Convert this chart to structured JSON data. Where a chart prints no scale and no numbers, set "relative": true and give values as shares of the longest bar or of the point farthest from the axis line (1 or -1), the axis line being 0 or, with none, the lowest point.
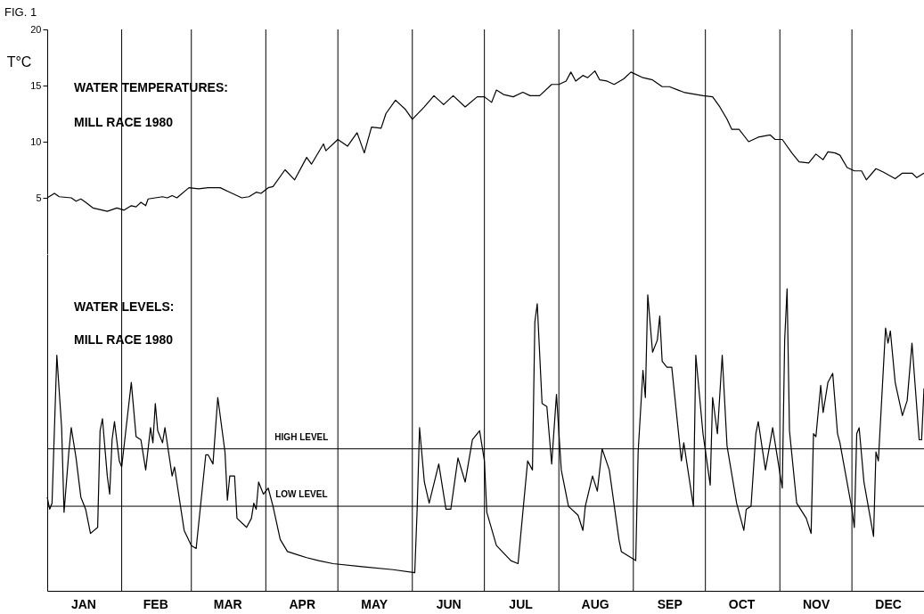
{
  "chart_data": [
    {
      "type": "line",
      "title": "FIG. 1",
      "ylabel": "T°C",
      "annotations": [
        "WATER TEMPERATURES:",
        "MILL RACE 1980"
      ],
      "x": [
        "1980-01-01",
        "1980-01-04",
        "1980-01-06",
        "1980-01-11",
        "1980-01-13",
        "1980-01-15",
        "1980-01-17",
        "1980-01-20",
        "1980-01-26",
        "1980-01-30",
        "1980-02-02",
        "1980-02-05",
        "1980-02-07",
        "1980-02-09",
        "1980-02-11",
        "1980-02-12",
        "1980-02-18",
        "1980-02-20",
        "1980-02-22",
        "1980-02-24",
        "1980-02-29",
        "1980-03-04",
        "1980-03-08",
        "1980-03-13",
        "1980-03-17",
        "1980-03-22",
        "1980-03-25",
        "1980-03-28",
        "1980-03-30",
        "1980-04-02",
        "1980-04-04",
        "1980-04-09",
        "1980-04-13",
        "1980-04-18",
        "1980-04-20",
        "1980-04-25",
        "1980-04-26",
        "1980-05-01",
        "1980-05-05",
        "1980-05-09",
        "1980-05-12",
        "1980-05-15",
        "1980-05-19",
        "1980-05-21",
        "1980-05-25",
        "1980-05-29",
        "1980-06-01",
        "1980-06-06",
        "1980-06-10",
        "1980-06-14",
        "1980-06-18",
        "1980-06-23",
        "1980-06-28",
        "1980-07-01",
        "1980-07-04",
        "1980-07-06",
        "1980-07-09",
        "1980-07-13",
        "1980-07-17",
        "1980-07-20",
        "1980-07-24",
        "1980-07-29",
        "1980-08-01",
        "1980-08-04",
        "1980-08-06",
        "1980-08-08",
        "1980-08-11",
        "1980-08-13",
        "1980-08-16",
        "1980-08-18",
        "1980-08-21",
        "1980-08-24",
        "1980-08-28",
        "1980-08-31",
        "1980-09-05",
        "1980-09-09",
        "1980-09-13",
        "1980-09-16",
        "1980-09-22",
        "1980-09-30",
        "1980-10-04",
        "1980-10-07",
        "1980-10-10",
        "1980-10-12",
        "1980-10-15",
        "1980-10-19",
        "1980-10-23",
        "1980-10-28",
        "1980-10-30",
        "1980-11-02",
        "1980-11-06",
        "1980-11-09",
        "1980-11-13",
        "1980-11-16",
        "1980-11-19",
        "1980-11-21",
        "1980-11-24",
        "1980-11-26",
        "1980-11-29",
        "1980-12-02",
        "1980-12-05",
        "1980-12-07",
        "1980-12-11",
        "1980-12-14",
        "1980-12-19",
        "1980-12-22",
        "1980-12-26",
        "1980-12-28",
        "1980-12-31"
      ],
      "series": [
        {
          "color": "#000000",
          "values": [
            5.0,
            5.4,
            5.1,
            5.0,
            4.7,
            4.9,
            4.6,
            4.1,
            3.8,
            4.1,
            3.9,
            4.3,
            4.2,
            4.6,
            4.3,
            4.9,
            5.1,
            5.0,
            5.2,
            5.0,
            5.9,
            5.8,
            5.9,
            5.9,
            5.5,
            5.0,
            5.1,
            5.5,
            5.4,
            5.9,
            6.0,
            7.5,
            6.6,
            8.6,
            8.0,
            9.8,
            9.2,
            10.2,
            9.6,
            10.8,
            9.0,
            11.3,
            11.2,
            12.5,
            13.7,
            12.9,
            12.0,
            13.1,
            14.1,
            13.3,
            14.1,
            13.1,
            14.0,
            14.0,
            13.5,
            14.6,
            14.2,
            14.0,
            14.4,
            14.1,
            14.1,
            15.1,
            15.1,
            15.4,
            16.2,
            15.4,
            15.9,
            15.7,
            16.3,
            15.5,
            15.4,
            15.1,
            15.6,
            16.2,
            15.7,
            15.5,
            14.9,
            14.9,
            14.4,
            14.1,
            14.0,
            13.1,
            12.0,
            11.1,
            11.1,
            10.0,
            10.4,
            10.6,
            10.2,
            10.2,
            9.0,
            8.2,
            8.1,
            8.9,
            8.4,
            9.1,
            9.0,
            8.8,
            7.7,
            7.4,
            7.4,
            6.6,
            7.6,
            7.3,
            6.7,
            7.2,
            7.2,
            6.8,
            7.2
          ]
        }
      ],
      "xlim": [
        "1980-01-01",
        "1980-12-31"
      ],
      "ylim": [
        0,
        20
      ],
      "yticks": [
        5,
        10,
        15,
        20
      ],
      "tick_labels": "y",
      "ref_lines": [
        {
          "axis": "x",
          "value": "1980-02-01"
        },
        {
          "axis": "x",
          "value": "1980-03-01"
        },
        {
          "axis": "x",
          "value": "1980-04-01"
        },
        {
          "axis": "x",
          "value": "1980-05-01"
        },
        {
          "axis": "x",
          "value": "1980-06-01"
        },
        {
          "axis": "x",
          "value": "1980-07-01"
        },
        {
          "axis": "x",
          "value": "1980-08-01"
        },
        {
          "axis": "x",
          "value": "1980-09-01"
        },
        {
          "axis": "x",
          "value": "1980-10-01"
        },
        {
          "axis": "x",
          "value": "1980-11-01"
        },
        {
          "axis": "x",
          "value": "1980-12-01"
        }
      ]
    },
    {
      "type": "line",
      "relative": true,
      "annotations": [
        "WATER LEVELS:",
        "MILL RACE 1980"
      ],
      "x": [
        "1980-01-01",
        "1980-01-02",
        "1980-01-03",
        "1980-01-05",
        "1980-01-07",
        "1980-01-08",
        "1980-01-10",
        "1980-01-11",
        "1980-01-13",
        "1980-01-15",
        "1980-01-17",
        "1980-01-19",
        "1980-01-22",
        "1980-01-23",
        "1980-01-24",
        "1980-01-26",
        "1980-01-27",
        "1980-01-28",
        "1980-01-29",
        "1980-01-31",
        "1980-02-01",
        "1980-02-03",
        "1980-02-05",
        "1980-02-07",
        "1980-02-09",
        "1980-02-11",
        "1980-02-13",
        "1980-02-14",
        "1980-02-15",
        "1980-02-16",
        "1980-02-18",
        "1980-02-19",
        "1980-02-22",
        "1980-02-23",
        "1980-02-27",
        "1980-03-01",
        "1980-03-03",
        "1980-03-07",
        "1980-03-08",
        "1980-03-10",
        "1980-03-12",
        "1980-03-15",
        "1980-03-16",
        "1980-03-17",
        "1980-03-19",
        "1980-03-20",
        "1980-03-24",
        "1980-03-26",
        "1980-03-27",
        "1980-03-28",
        "1980-03-29",
        "1980-03-31",
        "1980-04-02",
        "1980-04-04",
        "1980-04-07",
        "1980-04-10",
        "1980-04-14",
        "1980-04-18",
        "1980-04-23",
        "1980-04-29",
        "1980-05-11",
        "1980-05-24",
        "1980-06-02",
        "1980-06-03",
        "1980-06-04",
        "1980-06-06",
        "1980-06-08",
        "1980-06-12",
        "1980-06-15",
        "1980-06-17",
        "1980-06-20",
        "1980-06-23",
        "1980-06-26",
        "1980-06-29",
        "1980-07-01",
        "1980-07-02",
        "1980-07-06",
        "1980-07-12",
        "1980-07-15",
        "1980-07-17",
        "1980-07-19",
        "1980-07-21",
        "1980-07-22",
        "1980-07-23",
        "1980-07-25",
        "1980-07-27",
        "1980-07-29",
        "1980-07-31",
        "1980-08-02",
        "1980-08-05",
        "1980-08-09",
        "1980-08-11",
        "1980-08-12",
        "1980-08-15",
        "1980-08-17",
        "1980-08-19",
        "1980-08-22",
        "1980-08-26",
        "1980-08-27",
        "1980-09-02",
        "1980-09-03",
        "1980-09-05",
        "1980-09-06",
        "1980-09-07",
        "1980-09-09",
        "1980-09-11",
        "1980-09-12",
        "1980-09-13",
        "1980-09-15",
        "1980-09-17",
        "1980-09-21",
        "1980-09-22",
        "1980-09-26",
        "1980-09-27",
        "1980-09-30",
        "1980-10-03",
        "1980-10-04",
        "1980-10-06",
        "1980-10-08",
        "1980-10-10",
        "1980-10-14",
        "1980-10-17",
        "1980-10-18",
        "1980-10-20",
        "1980-10-22",
        "1980-10-23",
        "1980-10-26",
        "1980-10-29",
        "1980-11-02",
        "1980-11-03",
        "1980-11-04",
        "1980-11-05",
        "1980-11-08",
        "1980-11-12",
        "1980-11-14",
        "1980-11-15",
        "1980-11-16",
        "1980-11-18",
        "1980-11-19",
        "1980-11-21",
        "1980-11-23",
        "1980-11-25",
        "1980-11-26",
        "1980-12-01",
        "1980-12-02",
        "1980-12-03",
        "1980-12-04",
        "1980-12-06",
        "1980-12-10",
        "1980-12-11",
        "1980-12-12",
        "1980-12-15",
        "1980-12-16",
        "1980-12-17",
        "1980-12-19",
        "1980-12-22",
        "1980-12-24",
        "1980-12-26",
        "1980-12-29",
        "1980-12-30",
        "1980-12-31"
      ],
      "series": [
        {
          "color": "#000000",
          "values": [
            0.31,
            0.27,
            0.29,
            0.78,
            0.54,
            0.26,
            0.46,
            0.54,
            0.44,
            0.31,
            0.27,
            0.19,
            0.21,
            0.53,
            0.57,
            0.38,
            0.32,
            0.5,
            0.56,
            0.43,
            0.41,
            0.55,
            0.69,
            0.51,
            0.5,
            0.4,
            0.54,
            0.49,
            0.62,
            0.53,
            0.49,
            0.54,
            0.38,
            0.41,
            0.2,
            0.15,
            0.14,
            0.45,
            0.45,
            0.42,
            0.64,
            0.46,
            0.3,
            0.38,
            0.38,
            0.24,
            0.21,
            0.24,
            0.29,
            0.27,
            0.36,
            0.32,
            0.34,
            0.28,
            0.17,
            0.13,
            0.12,
            0.11,
            0.1,
            0.09,
            0.08,
            0.07,
            0.06,
            0.27,
            0.54,
            0.36,
            0.29,
            0.42,
            0.27,
            0.27,
            0.44,
            0.36,
            0.5,
            0.53,
            0.43,
            0.26,
            0.15,
            0.1,
            0.09,
            0.26,
            0.43,
            0.4,
            0.89,
            0.95,
            0.62,
            0.61,
            0.42,
            0.65,
            0.4,
            0.28,
            0.25,
            0.2,
            0.28,
            0.38,
            0.33,
            0.47,
            0.4,
            0.17,
            0.13,
            0.1,
            0.46,
            0.73,
            0.64,
            0.98,
            0.79,
            0.83,
            0.91,
            0.76,
            0.74,
            0.74,
            0.43,
            0.49,
            0.28,
            0.78,
            0.52,
            0.35,
            0.64,
            0.52,
            0.78,
            0.48,
            0.29,
            0.2,
            0.27,
            0.28,
            0.52,
            0.56,
            0.4,
            0.54,
            0.34,
            0.83,
            1.0,
            0.53,
            0.29,
            0.24,
            0.19,
            0.52,
            0.51,
            0.68,
            0.59,
            0.69,
            0.72,
            0.52,
            0.49,
            0.27,
            0.21,
            0.52,
            0.54,
            0.36,
            0.18,
            0.46,
            0.43,
            0.87,
            0.82,
            0.86,
            0.69,
            0.58,
            0.63,
            0.82,
            0.5,
            0.5,
            0.67
          ]
        }
      ],
      "xlim": [
        "1980-01-01",
        "1980-12-31"
      ],
      "xticks": [
        {
          "value": "1980-01-16",
          "label": "JAN"
        },
        {
          "value": "1980-02-15",
          "label": "FEB"
        },
        {
          "value": "1980-03-16",
          "label": "MAR"
        },
        {
          "value": "1980-04-16",
          "label": "APR"
        },
        {
          "value": "1980-05-16",
          "label": "MAY"
        },
        {
          "value": "1980-06-16",
          "label": "JUN"
        },
        {
          "value": "1980-07-16",
          "label": "JUL"
        },
        {
          "value": "1980-08-16",
          "label": "AUG"
        },
        {
          "value": "1980-09-16",
          "label": "SEP"
        },
        {
          "value": "1980-10-16",
          "label": "OCT"
        },
        {
          "value": "1980-11-16",
          "label": "NOV"
        },
        {
          "value": "1980-12-16",
          "label": "DEC"
        }
      ],
      "tick_labels": "x",
      "ref_lines": [
        {
          "axis": "y",
          "value": 0.47,
          "label": "HIGH LEVEL"
        },
        {
          "axis": "y",
          "value": 0.28,
          "label": "LOW LEVEL"
        },
        {
          "axis": "x",
          "value": "1980-02-01"
        },
        {
          "axis": "x",
          "value": "1980-03-01"
        },
        {
          "axis": "x",
          "value": "1980-04-01"
        },
        {
          "axis": "x",
          "value": "1980-05-01"
        },
        {
          "axis": "x",
          "value": "1980-06-01"
        },
        {
          "axis": "x",
          "value": "1980-07-01"
        },
        {
          "axis": "x",
          "value": "1980-08-01"
        },
        {
          "axis": "x",
          "value": "1980-09-01"
        },
        {
          "axis": "x",
          "value": "1980-10-01"
        },
        {
          "axis": "x",
          "value": "1980-11-01"
        },
        {
          "axis": "x",
          "value": "1980-12-01"
        }
      ]
    }
  ]
}
